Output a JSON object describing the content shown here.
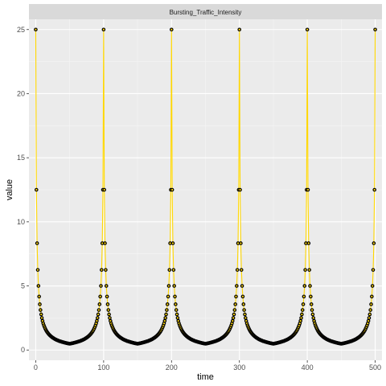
{
  "chart_data": {
    "type": "line",
    "facet_label": "Bursting_Traffic_Intensity",
    "xlabel": "time",
    "ylabel": "value",
    "xlim": [
      -10,
      510
    ],
    "ylim": [
      -0.8,
      25.8
    ],
    "x_ticks": [
      0,
      100,
      200,
      300,
      400,
      500
    ],
    "y_ticks": [
      0,
      5,
      10,
      15,
      20,
      25
    ],
    "grid": true,
    "legend": "none",
    "line_color": "#ffd700",
    "point_fill": "#ffd700",
    "point_stroke": "#000000",
    "series": [
      {
        "x": [
          0,
          1,
          2,
          3,
          4,
          5,
          6,
          7,
          8,
          9,
          10,
          11,
          12,
          13,
          14,
          15,
          16,
          17,
          18,
          19,
          20,
          21,
          22,
          23,
          24,
          25,
          26,
          27,
          28,
          29,
          30,
          31,
          32,
          33,
          34,
          35,
          36,
          37,
          38,
          39,
          40,
          41,
          42,
          43,
          44,
          45,
          46,
          47,
          48,
          49,
          50,
          51,
          52,
          53,
          54,
          55,
          56,
          57,
          58,
          59,
          60,
          61,
          62,
          63,
          64,
          65,
          66,
          67,
          68,
          69,
          70,
          71,
          72,
          73,
          74,
          75,
          76,
          77,
          78,
          79,
          80,
          81,
          82,
          83,
          84,
          85,
          86,
          87,
          88,
          89,
          90,
          91,
          92,
          93,
          94,
          95,
          96,
          97,
          98,
          99,
          100,
          101,
          102,
          103,
          104,
          105,
          106,
          107,
          108,
          109,
          110,
          111,
          112,
          113,
          114,
          115,
          116,
          117,
          118,
          119,
          120,
          121,
          122,
          123,
          124,
          125,
          126,
          127,
          128,
          129,
          130,
          131,
          132,
          133,
          134,
          135,
          136,
          137,
          138,
          139,
          140,
          141,
          142,
          143,
          144,
          145,
          146,
          147,
          148,
          149,
          150,
          151,
          152,
          153,
          154,
          155,
          156,
          157,
          158,
          159,
          160,
          161,
          162,
          163,
          164,
          165,
          166,
          167,
          168,
          169,
          170,
          171,
          172,
          173,
          174,
          175,
          176,
          177,
          178,
          179,
          180,
          181,
          182,
          183,
          184,
          185,
          186,
          187,
          188,
          189,
          190,
          191,
          192,
          193,
          194,
          195,
          196,
          197,
          198,
          199,
          200,
          201,
          202,
          203,
          204,
          205,
          206,
          207,
          208,
          209,
          210,
          211,
          212,
          213,
          214,
          215,
          216,
          217,
          218,
          219,
          220,
          221,
          222,
          223,
          224,
          225,
          226,
          227,
          228,
          229,
          230,
          231,
          232,
          233,
          234,
          235,
          236,
          237,
          238,
          239,
          240,
          241,
          242,
          243,
          244,
          245,
          246,
          247,
          248,
          249,
          250,
          251,
          252,
          253,
          254,
          255,
          256,
          257,
          258,
          259,
          260,
          261,
          262,
          263,
          264,
          265,
          266,
          267,
          268,
          269,
          270,
          271,
          272,
          273,
          274,
          275,
          276,
          277,
          278,
          279,
          280,
          281,
          282,
          283,
          284,
          285,
          286,
          287,
          288,
          289,
          290,
          291,
          292,
          293,
          294,
          295,
          296,
          297,
          298,
          299,
          300,
          301,
          302,
          303,
          304,
          305,
          306,
          307,
          308,
          309,
          310,
          311,
          312,
          313,
          314,
          315,
          316,
          317,
          318,
          319,
          320,
          321,
          322,
          323,
          324,
          325,
          326,
          327,
          328,
          329,
          330,
          331,
          332,
          333,
          334,
          335,
          336,
          337,
          338,
          339,
          340,
          341,
          342,
          343,
          344,
          345,
          346,
          347,
          348,
          349,
          350,
          351,
          352,
          353,
          354,
          355,
          356,
          357,
          358,
          359,
          360,
          361,
          362,
          363,
          364,
          365,
          366,
          367,
          368,
          369,
          370,
          371,
          372,
          373,
          374,
          375,
          376,
          377,
          378,
          379,
          380,
          381,
          382,
          383,
          384,
          385,
          386,
          387,
          388,
          389,
          390,
          391,
          392,
          393,
          394,
          395,
          396,
          397,
          398,
          399,
          400,
          401,
          402,
          403,
          404,
          405,
          406,
          407,
          408,
          409,
          410,
          411,
          412,
          413,
          414,
          415,
          416,
          417,
          418,
          419,
          420,
          421,
          422,
          423,
          424,
          425,
          426,
          427,
          428,
          429,
          430,
          431,
          432,
          433,
          434,
          435,
          436,
          437,
          438,
          439,
          440,
          441,
          442,
          443,
          444,
          445,
          446,
          447,
          448,
          449,
          450,
          451,
          452,
          453,
          454,
          455,
          456,
          457,
          458,
          459,
          460,
          461,
          462,
          463,
          464,
          465,
          466,
          467,
          468,
          469,
          470,
          471,
          472,
          473,
          474,
          475,
          476,
          477,
          478,
          479,
          480,
          481,
          482,
          483,
          484,
          485,
          486,
          487,
          488,
          489,
          490,
          491,
          492,
          493,
          494,
          495,
          496,
          497,
          498,
          499,
          500
        ],
        "y": [
          25,
          12.5,
          8.33,
          6.25,
          5,
          4.17,
          3.57,
          3.12,
          2.78,
          2.5,
          2.27,
          2.08,
          1.92,
          1.79,
          1.67,
          1.56,
          1.47,
          1.39,
          1.32,
          1.25,
          1.19,
          1.14,
          1.09,
          1.04,
          1,
          0.96,
          0.93,
          0.89,
          0.86,
          0.83,
          0.81,
          0.78,
          0.76,
          0.74,
          0.71,
          0.69,
          0.68,
          0.66,
          0.64,
          0.63,
          0.61,
          0.6,
          0.58,
          0.57,
          0.56,
          0.54,
          0.53,
          0.52,
          0.51,
          0.5,
          0.49,
          0.5,
          0.51,
          0.52,
          0.53,
          0.54,
          0.56,
          0.57,
          0.58,
          0.6,
          0.61,
          0.63,
          0.64,
          0.66,
          0.68,
          0.69,
          0.71,
          0.74,
          0.76,
          0.78,
          0.81,
          0.83,
          0.86,
          0.89,
          0.93,
          0.96,
          1,
          1.04,
          1.09,
          1.14,
          1.19,
          1.25,
          1.32,
          1.39,
          1.47,
          1.56,
          1.67,
          1.79,
          1.92,
          2.08,
          2.27,
          2.5,
          2.78,
          3.12,
          3.57,
          4.17,
          5,
          6.25,
          8.33,
          12.5,
          25,
          12.5,
          8.33,
          6.25,
          5,
          4.17,
          3.57,
          3.12,
          2.78,
          2.5,
          2.27,
          2.08,
          1.92,
          1.79,
          1.67,
          1.56,
          1.47,
          1.39,
          1.32,
          1.25,
          1.19,
          1.14,
          1.09,
          1.04,
          1,
          0.96,
          0.93,
          0.89,
          0.86,
          0.83,
          0.81,
          0.78,
          0.76,
          0.74,
          0.71,
          0.69,
          0.68,
          0.66,
          0.64,
          0.63,
          0.61,
          0.6,
          0.58,
          0.57,
          0.56,
          0.54,
          0.53,
          0.52,
          0.51,
          0.5,
          0.49,
          0.5,
          0.51,
          0.52,
          0.53,
          0.54,
          0.56,
          0.57,
          0.58,
          0.6,
          0.61,
          0.63,
          0.64,
          0.66,
          0.68,
          0.69,
          0.71,
          0.74,
          0.76,
          0.78,
          0.81,
          0.83,
          0.86,
          0.89,
          0.93,
          0.96,
          1,
          1.04,
          1.09,
          1.14,
          1.19,
          1.25,
          1.32,
          1.39,
          1.47,
          1.56,
          1.67,
          1.79,
          1.92,
          2.08,
          2.27,
          2.5,
          2.78,
          3.12,
          3.57,
          4.17,
          5,
          6.25,
          8.33,
          12.5,
          25,
          12.5,
          8.33,
          6.25,
          5,
          4.17,
          3.57,
          3.12,
          2.78,
          2.5,
          2.27,
          2.08,
          1.92,
          1.79,
          1.67,
          1.56,
          1.47,
          1.39,
          1.32,
          1.25,
          1.19,
          1.14,
          1.09,
          1.04,
          1,
          0.96,
          0.93,
          0.89,
          0.86,
          0.83,
          0.81,
          0.78,
          0.76,
          0.74,
          0.71,
          0.69,
          0.68,
          0.66,
          0.64,
          0.63,
          0.61,
          0.6,
          0.58,
          0.57,
          0.56,
          0.54,
          0.53,
          0.52,
          0.51,
          0.5,
          0.49,
          0.5,
          0.51,
          0.52,
          0.53,
          0.54,
          0.56,
          0.57,
          0.58,
          0.6,
          0.61,
          0.63,
          0.64,
          0.66,
          0.68,
          0.69,
          0.71,
          0.74,
          0.76,
          0.78,
          0.81,
          0.83,
          0.86,
          0.89,
          0.93,
          0.96,
          1,
          1.04,
          1.09,
          1.14,
          1.19,
          1.25,
          1.32,
          1.39,
          1.47,
          1.56,
          1.67,
          1.79,
          1.92,
          2.08,
          2.27,
          2.5,
          2.78,
          3.12,
          3.57,
          4.17,
          5,
          6.25,
          8.33,
          12.5,
          25,
          12.5,
          8.33,
          6.25,
          5,
          4.17,
          3.57,
          3.12,
          2.78,
          2.5,
          2.27,
          2.08,
          1.92,
          1.79,
          1.67,
          1.56,
          1.47,
          1.39,
          1.32,
          1.25,
          1.19,
          1.14,
          1.09,
          1.04,
          1,
          0.96,
          0.93,
          0.89,
          0.86,
          0.83,
          0.81,
          0.78,
          0.76,
          0.74,
          0.71,
          0.69,
          0.68,
          0.66,
          0.64,
          0.63,
          0.61,
          0.6,
          0.58,
          0.57,
          0.56,
          0.54,
          0.53,
          0.52,
          0.51,
          0.5,
          0.49,
          0.5,
          0.51,
          0.52,
          0.53,
          0.54,
          0.56,
          0.57,
          0.58,
          0.6,
          0.61,
          0.63,
          0.64,
          0.66,
          0.68,
          0.69,
          0.71,
          0.74,
          0.76,
          0.78,
          0.81,
          0.83,
          0.86,
          0.89,
          0.93,
          0.96,
          1,
          1.04,
          1.09,
          1.14,
          1.19,
          1.25,
          1.32,
          1.39,
          1.47,
          1.56,
          1.67,
          1.79,
          1.92,
          2.08,
          2.27,
          2.5,
          2.78,
          3.12,
          3.57,
          4.17,
          5,
          6.25,
          8.33,
          12.5,
          25,
          12.5,
          8.33,
          6.25,
          5,
          4.17,
          3.57,
          3.12,
          2.78,
          2.5,
          2.27,
          2.08,
          1.92,
          1.79,
          1.67,
          1.56,
          1.47,
          1.39,
          1.32,
          1.25,
          1.19,
          1.14,
          1.09,
          1.04,
          1,
          0.96,
          0.93,
          0.89,
          0.86,
          0.83,
          0.81,
          0.78,
          0.76,
          0.74,
          0.71,
          0.69,
          0.68,
          0.66,
          0.64,
          0.63,
          0.61,
          0.6,
          0.58,
          0.57,
          0.56,
          0.54,
          0.53,
          0.52,
          0.51,
          0.5,
          0.49,
          0.5,
          0.51,
          0.52,
          0.53,
          0.54,
          0.56,
          0.57,
          0.58,
          0.6,
          0.61,
          0.63,
          0.64,
          0.66,
          0.68,
          0.69,
          0.71,
          0.74,
          0.76,
          0.78,
          0.81,
          0.83,
          0.86,
          0.89,
          0.93,
          0.96,
          1,
          1.04,
          1.09,
          1.14,
          1.19,
          1.25,
          1.32,
          1.39,
          1.47,
          1.56,
          1.67,
          1.79,
          1.92,
          2.08,
          2.27,
          2.5,
          2.78,
          3.12,
          3.57,
          4.17,
          5,
          6.25,
          8.33,
          12.5,
          25
        ]
      }
    ]
  }
}
